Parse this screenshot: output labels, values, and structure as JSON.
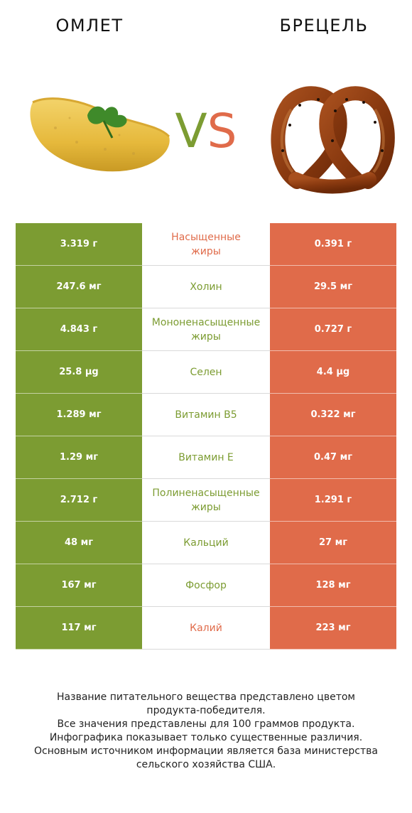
{
  "header": {
    "left_title": "ОМЛЕТ",
    "right_title": "БРЕЦЕЛЬ",
    "vs_v": "V",
    "vs_s": "S"
  },
  "images": {
    "left": "omelet-image",
    "right": "pretzel-image"
  },
  "colors": {
    "left": "#7c9c32",
    "right": "#e06b4a"
  },
  "rows": [
    {
      "left": "3.319 г",
      "name": "Насыщенные\nжиры",
      "right": "0.391 г",
      "winner": "right"
    },
    {
      "left": "247.6 мг",
      "name": "Холин",
      "right": "29.5 мг",
      "winner": "left"
    },
    {
      "left": "4.843 г",
      "name": "Мононенасыщенные\nжиры",
      "right": "0.727 г",
      "winner": "left"
    },
    {
      "left": "25.8 µg",
      "name": "Селен",
      "right": "4.4 µg",
      "winner": "left"
    },
    {
      "left": "1.289 мг",
      "name": "Витамин B5",
      "right": "0.322 мг",
      "winner": "left"
    },
    {
      "left": "1.29 мг",
      "name": "Витамин E",
      "right": "0.47 мг",
      "winner": "left"
    },
    {
      "left": "2.712 г",
      "name": "Полиненасыщенные\nжиры",
      "right": "1.291 г",
      "winner": "left"
    },
    {
      "left": "48 мг",
      "name": "Кальций",
      "right": "27 мг",
      "winner": "left"
    },
    {
      "left": "167 мг",
      "name": "Фосфор",
      "right": "128 мг",
      "winner": "left"
    },
    {
      "left": "117 мг",
      "name": "Калий",
      "right": "223 мг",
      "winner": "right"
    }
  ],
  "footer": [
    "Название питательного вещества представлено цветом",
    "продукта-победителя.",
    "Все значения представлены для 100 граммов продукта.",
    "Инфографика показывает только существенные различия.",
    "Основным источником информации является база министерства",
    "сельского хозяйства США."
  ]
}
